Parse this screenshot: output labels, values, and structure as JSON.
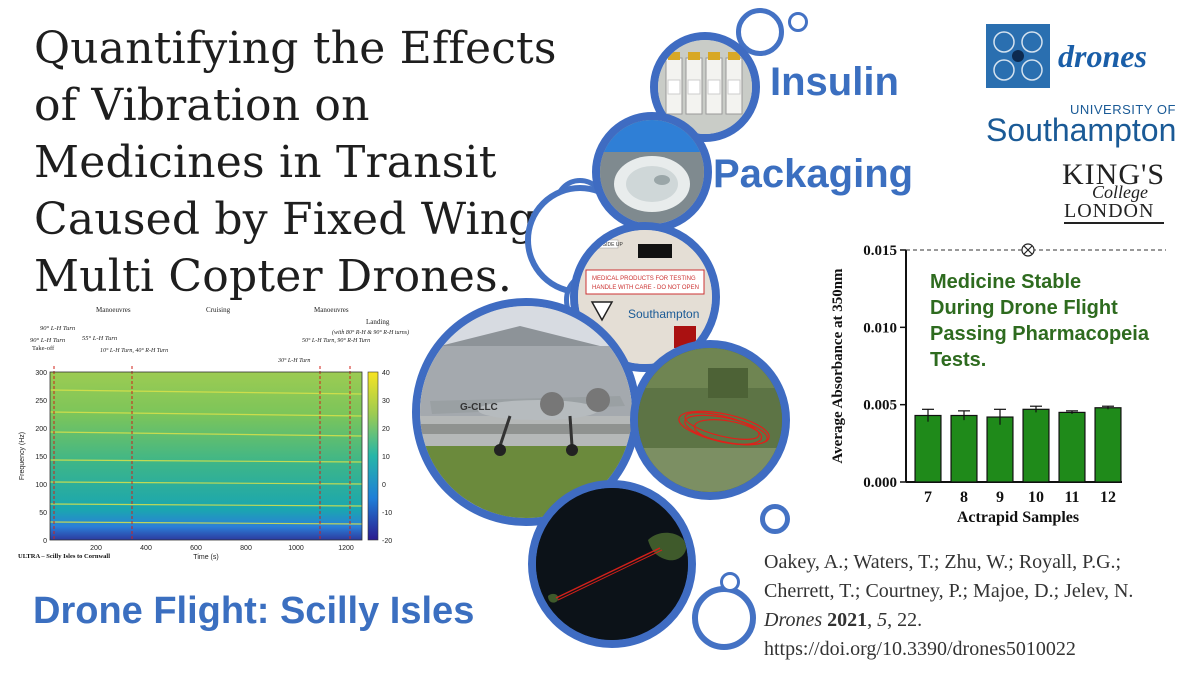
{
  "title": "Quantifying the Effects of Vibration on Medicines in Transit Caused by Fixed Wing & Multi Copter Drones.",
  "labels": {
    "insulin": "Insulin",
    "packaging": "Packaging",
    "drone_flight": "Drone Flight: Scilly Isles"
  },
  "logos": {
    "drones": "drones",
    "southampton_top": "UNIVERSITY OF",
    "southampton_name": "Southampton",
    "kcl_line1": "KING'S",
    "kcl_line2": "College",
    "kcl_line3": "LONDON"
  },
  "package_text": {
    "line1": "MEDICAL PRODUCTS FOR TESTING",
    "line2": "HANDLE WITH CARE - DO NOT OPEN",
    "logo": "Southampton",
    "tag": "THIS SIDE UP"
  },
  "plane_reg": "G-CLLC",
  "citation": {
    "authors": "Oakey, A.; Waters, T.; Zhu, W.; Royall, P.G.; Cherrett, T.; Courtney, P.; Majoe, D.; Jelev, N.",
    "journal": "Drones",
    "year": "2021",
    "volume": "5",
    "page": "22.",
    "doi": "https://doi.org/10.3390/drones5010022"
  },
  "spectrogram": {
    "phases": [
      "Manoeuvres",
      "Cruising",
      "Manoeuvres",
      "Landing"
    ],
    "events": [
      "Take-off",
      "90° L-H Turn",
      "90° L-H Turn",
      "55° L-H Turn",
      "10° L-H Turn, 40° R-H Turn",
      "50° L-H Turn, 90° R-H Turn",
      "30° L-H Turn",
      "(with 80° R-H & 90° R-H turns)"
    ],
    "ylabel": "Frequency (Hz)",
    "xlabel": "Time (s)",
    "caption": "ULTRA – Scilly Isles to Cornwall",
    "yticks": [
      "300",
      "250",
      "200",
      "150",
      "100",
      "50",
      "0"
    ],
    "xticks": [
      "200",
      "400",
      "600",
      "800",
      "1000",
      "1200"
    ],
    "colorbar_ticks": [
      "40",
      "30",
      "20",
      "10",
      "0",
      "-10",
      "-20"
    ]
  },
  "chart_data": {
    "type": "bar",
    "categories": [
      "7",
      "8",
      "9",
      "10",
      "11",
      "12"
    ],
    "values": [
      0.0043,
      0.0043,
      0.0042,
      0.0047,
      0.0045,
      0.0048
    ],
    "errors": [
      0.0004,
      0.0003,
      0.0005,
      0.0002,
      0.0001,
      0.0001
    ],
    "reference_line": 0.015,
    "xlabel": "Actrapid Samples",
    "ylabel": "Average Absorbance at 350nm",
    "ylim": [
      0,
      0.015
    ],
    "yticks": [
      "0.000",
      "0.005",
      "0.010",
      "0.015"
    ],
    "annotation": "Medicine Stable During Drone Flight Passing Pharmacopeia Tests.",
    "annotation_lines": [
      "Medicine Stable",
      "During Drone Flight",
      "Passing Pharmacopeia",
      "Tests."
    ],
    "bar_color": "#1f8a1a",
    "annotation_color": "#2e6b1f"
  }
}
